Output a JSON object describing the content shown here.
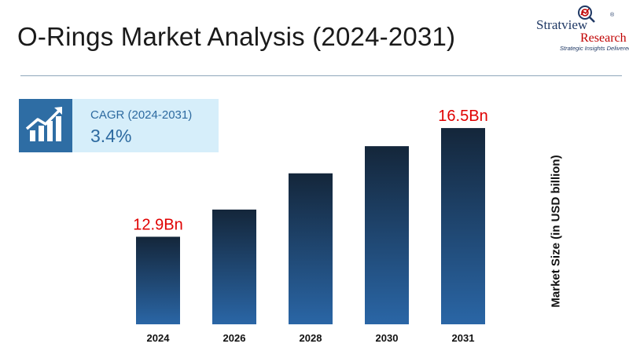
{
  "header": {
    "title": "O-Rings Market Analysis (2024-2031)"
  },
  "logo": {
    "name_part1": "Stratview",
    "registered": "®",
    "name_part2": "Research",
    "tagline": "Strategic Insights Delivered",
    "icon": "magnifier-target-icon"
  },
  "cagr": {
    "label": "CAGR (2024-2031)",
    "value": "3.4%",
    "icon": "growth-chart-icon"
  },
  "colors": {
    "bar_top": "#14263a",
    "bar_bottom": "#2a66a6",
    "data_label": "#e00000",
    "accent": "#2e6da4"
  },
  "chart_data": {
    "type": "bar",
    "categories": [
      "2024",
      "2026",
      "2028",
      "2030",
      "2031"
    ],
    "values": [
      12.9,
      13.8,
      15.0,
      15.9,
      16.5
    ],
    "data_labels": [
      "12.9Bn",
      "",
      "",
      "",
      "16.5Bn"
    ],
    "ylabel": "Market Size (in USD billion)",
    "xlabel": "",
    "ylim": [
      10.0,
      17.1
    ],
    "grid": false,
    "legend": "none"
  }
}
